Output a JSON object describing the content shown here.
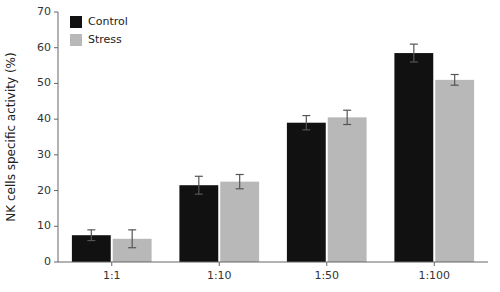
{
  "chart_data": {
    "type": "bar",
    "categories": [
      "1:1",
      "1:10",
      "1:50",
      "1:100"
    ],
    "series": [
      {
        "name": "Control",
        "color": "#111111",
        "values": [
          7.5,
          21.5,
          39.0,
          58.5
        ],
        "errors": [
          1.5,
          2.5,
          2.0,
          2.5
        ]
      },
      {
        "name": "Stress",
        "color": "#b8b8b8",
        "values": [
          6.5,
          22.5,
          40.5,
          51.0
        ],
        "errors": [
          2.5,
          2.0,
          2.0,
          1.5
        ]
      }
    ],
    "ylabel": "NK cells specific activity (%)",
    "ylim": [
      0,
      70
    ],
    "yticks": [
      0,
      10,
      20,
      30,
      40,
      50,
      60,
      70
    ],
    "legend": "upper left"
  }
}
